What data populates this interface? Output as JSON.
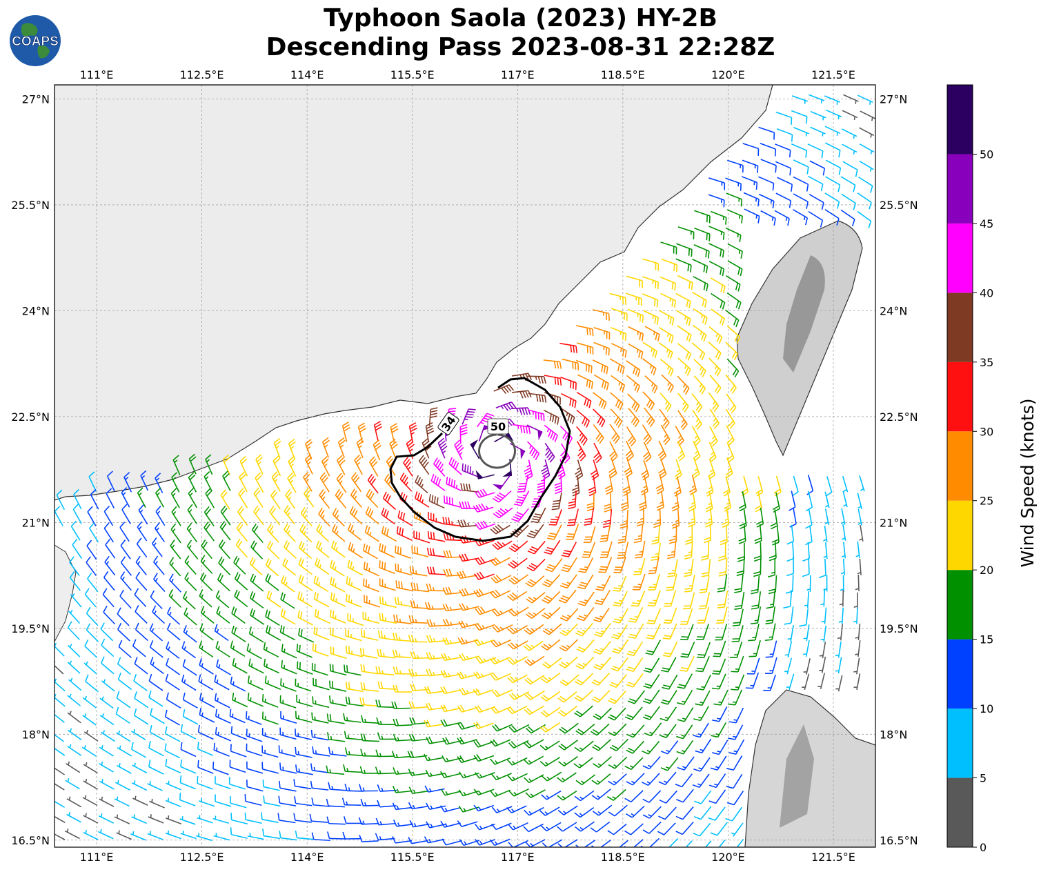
{
  "title": {
    "line1": "Typhoon Saola (2023) HY-2B",
    "line2": "Descending Pass 2023-08-31 22:28Z"
  },
  "logo": {
    "text": "COAPS",
    "icon": "globe-icon"
  },
  "map": {
    "lon_ticks": [
      "111°E",
      "112.5°E",
      "114°E",
      "115.5°E",
      "117°E",
      "118.5°E",
      "120°E",
      "121.5°E"
    ],
    "lat_ticks": [
      "27°N",
      "25.5°N",
      "24°N",
      "22.5°N",
      "21°N",
      "19.5°N",
      "18°N",
      "16.5°N"
    ],
    "extent": {
      "lon": [
        110.4,
        122.1
      ],
      "lat": [
        16.4,
        27.2
      ]
    },
    "storm_center": {
      "lon": 116.7,
      "lat": 21.95
    },
    "contours": [
      {
        "label": "34",
        "unit": "knots"
      },
      {
        "label": "50",
        "unit": "knots"
      }
    ],
    "land_color": "#f2f2f2",
    "coast_color": "#333333"
  },
  "colorbar": {
    "label": "Wind Speed (knots)",
    "ticks": [
      "0",
      "5",
      "10",
      "15",
      "20",
      "25",
      "30",
      "35",
      "40",
      "45",
      "50"
    ],
    "bins": [
      {
        "min": 0,
        "max": 5,
        "color": "#595959"
      },
      {
        "min": 5,
        "max": 10,
        "color": "#00bfff"
      },
      {
        "min": 10,
        "max": 15,
        "color": "#0040ff"
      },
      {
        "min": 15,
        "max": 20,
        "color": "#009000"
      },
      {
        "min": 20,
        "max": 25,
        "color": "#ffd700"
      },
      {
        "min": 25,
        "max": 30,
        "color": "#ff8c00"
      },
      {
        "min": 30,
        "max": 35,
        "color": "#ff1010"
      },
      {
        "min": 35,
        "max": 40,
        "color": "#7f3a24"
      },
      {
        "min": 40,
        "max": 45,
        "color": "#ff00ff"
      },
      {
        "min": 45,
        "max": 50,
        "color": "#8800bb"
      },
      {
        "min": 50,
        "max": 55,
        "color": "#2c0060"
      }
    ]
  }
}
